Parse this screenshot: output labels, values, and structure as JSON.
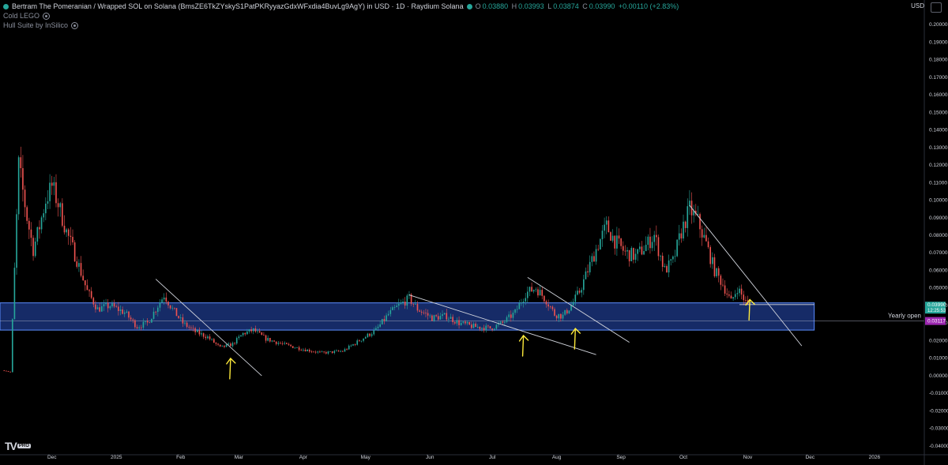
{
  "header": {
    "title": "Bertram The Pomeranian / Wrapped SOL on Solana (BmsZE6TkZYskyS1PatPKRyyazGdxWFxdia4BuvLg9AgY) in USD · 1D · Raydium Solana",
    "ohlc": {
      "o_label": "O",
      "o": "0.03880",
      "h_label": "H",
      "h": "0.03993",
      "l_label": "L",
      "l": "0.03874",
      "c_label": "C",
      "c": "0.03990",
      "change": "+0.00110 (+2.83%)"
    },
    "indicators": [
      "Cold LEGO",
      "Hull Suite by InSilico"
    ],
    "currency": "USD"
  },
  "colors": {
    "background": "#000000",
    "up": "#26a69a",
    "down": "#ef5350",
    "zone_fill": "#1e3a8a",
    "zone_border": "#5b8cff",
    "trendline": "#d1d4dc",
    "arrow": "#ffeb3b",
    "axis_text": "#d1d4dc",
    "price_tag": "#26a69a",
    "yearly_tag": "#9c27b0"
  },
  "chart_data": {
    "type": "candlestick",
    "x_labels": [
      "Dec",
      "2025",
      "Feb",
      "Mar",
      "Apr",
      "May",
      "Jun",
      "Jul",
      "Aug",
      "Sep",
      "Oct",
      "Nov",
      "Dec",
      "2026"
    ],
    "y_ticks": [
      "0.20000",
      "0.19000",
      "0.18000",
      "0.17000",
      "0.16000",
      "0.15000",
      "0.14000",
      "0.13000",
      "0.12000",
      "0.11000",
      "0.10000",
      "0.09000",
      "0.08000",
      "0.07000",
      "0.06000",
      "0.05000",
      "0.04000",
      "0.03000",
      "0.02000",
      "0.01000",
      "0.00000",
      "-0.01000",
      "-0.02000",
      "-0.03000",
      "-0.04000"
    ],
    "ylim": [
      -0.045,
      0.205
    ],
    "x_range": [
      "2024-11-06",
      "2026-01-25"
    ],
    "price_series": [
      [
        "2024-11-08",
        0.003
      ],
      [
        "2024-11-11",
        0.002
      ],
      [
        "2024-11-13",
        0.06
      ],
      [
        "2024-11-15",
        0.12
      ],
      [
        "2024-11-17",
        0.105
      ],
      [
        "2024-11-19",
        0.09
      ],
      [
        "2024-11-22",
        0.072
      ],
      [
        "2024-11-25",
        0.085
      ],
      [
        "2024-11-28",
        0.1
      ],
      [
        "2024-12-01",
        0.108
      ],
      [
        "2024-12-04",
        0.098
      ],
      [
        "2024-12-08",
        0.082
      ],
      [
        "2024-12-13",
        0.066
      ],
      [
        "2024-12-18",
        0.048
      ],
      [
        "2024-12-23",
        0.038
      ],
      [
        "2024-12-29",
        0.04
      ],
      [
        "2025-01-05",
        0.036
      ],
      [
        "2025-01-11",
        0.028
      ],
      [
        "2025-01-16",
        0.03
      ],
      [
        "2025-01-20",
        0.038
      ],
      [
        "2025-01-24",
        0.046
      ],
      [
        "2025-01-28",
        0.038
      ],
      [
        "2025-02-02",
        0.03
      ],
      [
        "2025-02-08",
        0.025
      ],
      [
        "2025-02-14",
        0.022
      ],
      [
        "2025-02-20",
        0.016
      ],
      [
        "2025-02-26",
        0.018
      ],
      [
        "2025-03-03",
        0.024
      ],
      [
        "2025-03-08",
        0.026
      ],
      [
        "2025-03-14",
        0.021
      ],
      [
        "2025-03-22",
        0.018
      ],
      [
        "2025-04-01",
        0.015
      ],
      [
        "2025-04-10",
        0.013
      ],
      [
        "2025-04-20",
        0.014
      ],
      [
        "2025-04-28",
        0.02
      ],
      [
        "2025-05-06",
        0.026
      ],
      [
        "2025-05-12",
        0.035
      ],
      [
        "2025-05-17",
        0.04
      ],
      [
        "2025-05-22",
        0.044
      ],
      [
        "2025-05-26",
        0.038
      ],
      [
        "2025-06-02",
        0.033
      ],
      [
        "2025-06-09",
        0.034
      ],
      [
        "2025-06-15",
        0.03
      ],
      [
        "2025-06-22",
        0.028
      ],
      [
        "2025-06-30",
        0.027
      ],
      [
        "2025-07-06",
        0.03
      ],
      [
        "2025-07-12",
        0.036
      ],
      [
        "2025-07-17",
        0.047
      ],
      [
        "2025-07-22",
        0.05
      ],
      [
        "2025-07-27",
        0.043
      ],
      [
        "2025-07-31",
        0.035
      ],
      [
        "2025-08-04",
        0.034
      ],
      [
        "2025-08-08",
        0.04
      ],
      [
        "2025-08-12",
        0.048
      ],
      [
        "2025-08-16",
        0.06
      ],
      [
        "2025-08-21",
        0.075
      ],
      [
        "2025-08-25",
        0.085
      ],
      [
        "2025-08-29",
        0.077
      ],
      [
        "2025-09-03",
        0.07
      ],
      [
        "2025-09-08",
        0.068
      ],
      [
        "2025-09-13",
        0.074
      ],
      [
        "2025-09-17",
        0.08
      ],
      [
        "2025-09-22",
        0.06
      ],
      [
        "2025-09-26",
        0.065
      ],
      [
        "2025-09-30",
        0.082
      ],
      [
        "2025-10-04",
        0.095
      ],
      [
        "2025-10-08",
        0.088
      ],
      [
        "2025-10-12",
        0.075
      ],
      [
        "2025-10-16",
        0.06
      ],
      [
        "2025-10-20",
        0.052
      ],
      [
        "2025-10-24",
        0.042
      ],
      [
        "2025-10-27",
        0.05
      ],
      [
        "2025-10-29",
        0.046
      ],
      [
        "2025-11-01",
        0.0399
      ]
    ],
    "zone": {
      "y_low": 0.026,
      "y_high": 0.0415,
      "x_start": "2024-11-06",
      "x_end": "2025-12-03"
    },
    "yearly_open": {
      "label": "Yearly open",
      "value": 0.03117,
      "value_label": "0.03117"
    },
    "last_price": {
      "value": 0.0399,
      "value_label": "0.03990",
      "countdown": "12:25:53"
    },
    "trendlines": [
      {
        "from": [
          "2025-01-20",
          0.055
        ],
        "to": [
          "2025-03-12",
          0.0
        ]
      },
      {
        "from": [
          "2025-05-22",
          0.046
        ],
        "to": [
          "2025-08-20",
          0.012
        ]
      },
      {
        "from": [
          "2025-07-18",
          0.056
        ],
        "to": [
          "2025-09-05",
          0.019
        ]
      },
      {
        "from": [
          "2025-10-04",
          0.097
        ],
        "to": [
          "2025-11-27",
          0.017
        ]
      },
      {
        "from": [
          "2025-10-28",
          0.0405
        ],
        "to": [
          "2025-12-03",
          0.0405
        ]
      }
    ],
    "annotation_arrows": [
      [
        "2025-02-25",
        0.009
      ],
      [
        "2025-07-16",
        0.022
      ],
      [
        "2025-08-10",
        0.026
      ],
      [
        "2025-11-02",
        0.0425
      ]
    ]
  }
}
